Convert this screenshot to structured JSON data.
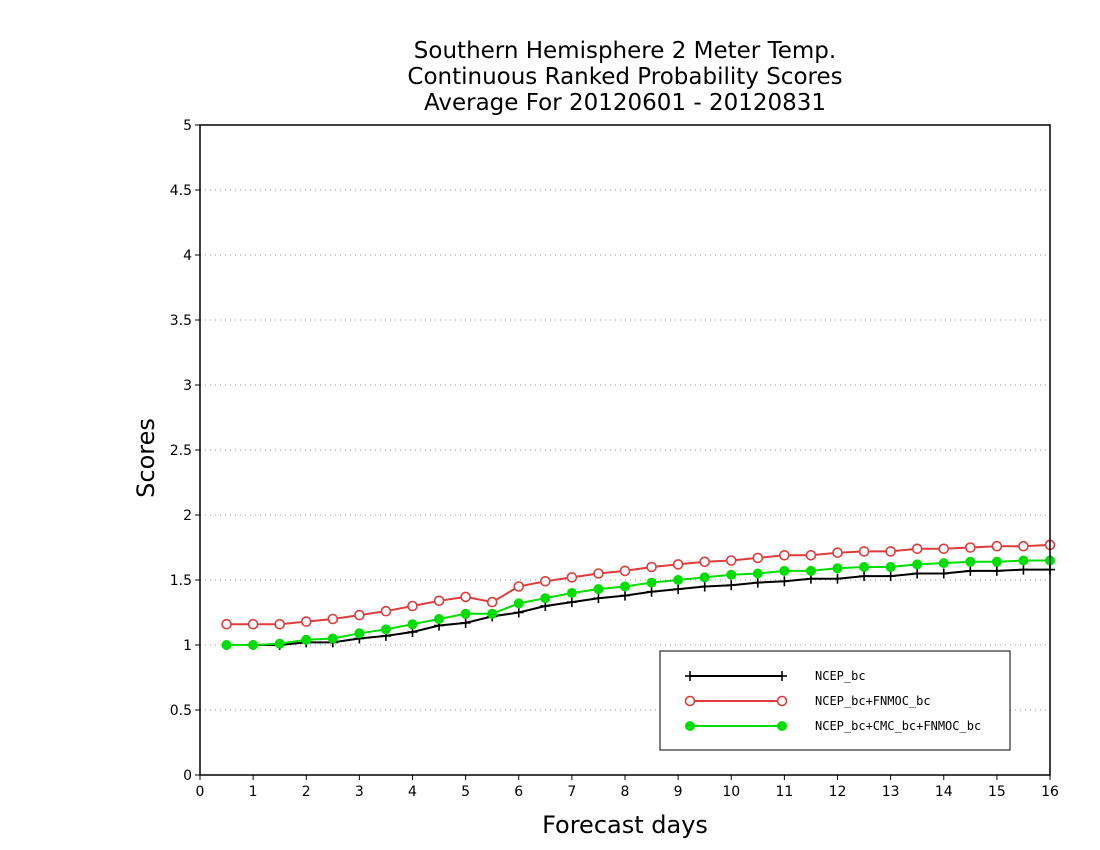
{
  "chart_data": {
    "type": "line",
    "title": [
      "Southern Hemisphere 2 Meter Temp.",
      "Continuous Ranked Probability Scores",
      "Average For 20120601 - 20120831"
    ],
    "xlabel": "Forecast days",
    "ylabel": "Scores",
    "xlim": [
      0,
      16
    ],
    "ylim": [
      0,
      5
    ],
    "x_ticks": [
      "0",
      "1",
      "2",
      "3",
      "4",
      "5",
      "6",
      "7",
      "8",
      "9",
      "10",
      "11",
      "12",
      "13",
      "14",
      "15",
      "16"
    ],
    "y_ticks": [
      "0",
      "0.5",
      "1",
      "1.5",
      "2",
      "2.5",
      "3",
      "3.5",
      "4",
      "4.5",
      "5"
    ],
    "grid": "horizontal dotted",
    "legend_position": "bottom-right",
    "x": [
      0.5,
      1,
      1.5,
      2,
      2.5,
      3,
      3.5,
      4,
      4.5,
      5,
      5.5,
      6,
      6.5,
      7,
      7.5,
      8,
      8.5,
      9,
      9.5,
      10,
      10.5,
      11,
      11.5,
      12,
      12.5,
      13,
      13.5,
      14,
      14.5,
      15,
      15.5,
      16
    ],
    "series": [
      {
        "name": "NCEP_bc",
        "color": "#000000",
        "marker": "plus",
        "values": [
          1.0,
          1.0,
          1.0,
          1.02,
          1.02,
          1.05,
          1.07,
          1.1,
          1.15,
          1.17,
          1.22,
          1.25,
          1.3,
          1.33,
          1.36,
          1.38,
          1.41,
          1.43,
          1.45,
          1.46,
          1.48,
          1.49,
          1.51,
          1.51,
          1.53,
          1.53,
          1.55,
          1.55,
          1.57,
          1.57,
          1.58,
          1.58
        ]
      },
      {
        "name": "NCEP_bc+FNMOC_bc",
        "color": "#e03c3c",
        "marker": "open-circle",
        "values": [
          1.16,
          1.16,
          1.16,
          1.18,
          1.2,
          1.23,
          1.26,
          1.3,
          1.34,
          1.37,
          1.33,
          1.45,
          1.49,
          1.52,
          1.55,
          1.57,
          1.6,
          1.62,
          1.64,
          1.65,
          1.67,
          1.69,
          1.69,
          1.71,
          1.72,
          1.72,
          1.74,
          1.74,
          1.75,
          1.76,
          1.76,
          1.77
        ]
      },
      {
        "name": "NCEP_bc+CMC_bc+FNMOC_bc",
        "color": "#00dd00",
        "marker": "filled-circle",
        "values": [
          1.0,
          1.0,
          1.01,
          1.04,
          1.05,
          1.09,
          1.12,
          1.16,
          1.2,
          1.24,
          1.24,
          1.32,
          1.36,
          1.4,
          1.43,
          1.45,
          1.48,
          1.5,
          1.52,
          1.54,
          1.55,
          1.57,
          1.57,
          1.59,
          1.6,
          1.6,
          1.62,
          1.63,
          1.64,
          1.64,
          1.65,
          1.65
        ]
      }
    ]
  }
}
